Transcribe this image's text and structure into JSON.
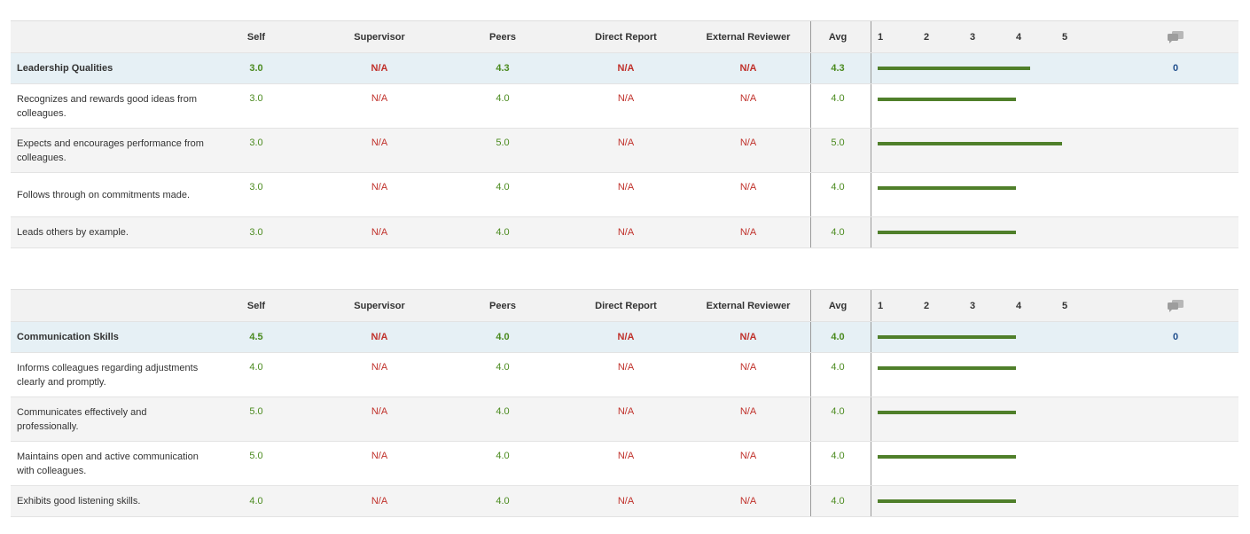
{
  "columns": {
    "self": "Self",
    "supervisor": "Supervisor",
    "peers": "Peers",
    "direct_report": "Direct Report",
    "external_reviewer": "External Reviewer",
    "avg": "Avg",
    "scale": [
      "1",
      "2",
      "3",
      "4",
      "5"
    ],
    "comment_icon": "comment-icon"
  },
  "colors": {
    "score": "#4a8a1e",
    "na": "#c0312b",
    "bar": "#4f7f2a",
    "count": "#1f4e8c"
  },
  "sections": [
    {
      "group": {
        "label": "Leadership Qualities",
        "self": "3.0",
        "supervisor": "N/A",
        "peers": "4.3",
        "direct_report": "N/A",
        "external_reviewer": "N/A",
        "avg": "4.3",
        "bar_value": 4.3,
        "comments": "0"
      },
      "items": [
        {
          "label": "Recognizes and rewards good ideas from colleagues.",
          "self": "3.0",
          "supervisor": "N/A",
          "peers": "4.0",
          "direct_report": "N/A",
          "external_reviewer": "N/A",
          "avg": "4.0",
          "bar_value": 4.0
        },
        {
          "label": "Expects and encourages performance from colleagues.",
          "self": "3.0",
          "supervisor": "N/A",
          "peers": "5.0",
          "direct_report": "N/A",
          "external_reviewer": "N/A",
          "avg": "5.0",
          "bar_value": 5.0
        },
        {
          "label": "Follows through on commitments made.",
          "self": "3.0",
          "supervisor": "N/A",
          "peers": "4.0",
          "direct_report": "N/A",
          "external_reviewer": "N/A",
          "avg": "4.0",
          "bar_value": 4.0
        },
        {
          "label": "Leads others by example.",
          "self": "3.0",
          "supervisor": "N/A",
          "peers": "4.0",
          "direct_report": "N/A",
          "external_reviewer": "N/A",
          "avg": "4.0",
          "bar_value": 4.0
        }
      ]
    },
    {
      "group": {
        "label": "Communication Skills",
        "self": "4.5",
        "supervisor": "N/A",
        "peers": "4.0",
        "direct_report": "N/A",
        "external_reviewer": "N/A",
        "avg": "4.0",
        "bar_value": 4.0,
        "comments": "0"
      },
      "items": [
        {
          "label": "Informs colleagues regarding adjustments clearly and promptly.",
          "self": "4.0",
          "supervisor": "N/A",
          "peers": "4.0",
          "direct_report": "N/A",
          "external_reviewer": "N/A",
          "avg": "4.0",
          "bar_value": 4.0
        },
        {
          "label": "Communicates effectively and professionally.",
          "self": "5.0",
          "supervisor": "N/A",
          "peers": "4.0",
          "direct_report": "N/A",
          "external_reviewer": "N/A",
          "avg": "4.0",
          "bar_value": 4.0
        },
        {
          "label": "Maintains open and active communication with colleagues.",
          "self": "5.0",
          "supervisor": "N/A",
          "peers": "4.0",
          "direct_report": "N/A",
          "external_reviewer": "N/A",
          "avg": "4.0",
          "bar_value": 4.0
        },
        {
          "label": "Exhibits good listening skills.",
          "self": "4.0",
          "supervisor": "N/A",
          "peers": "4.0",
          "direct_report": "N/A",
          "external_reviewer": "N/A",
          "avg": "4.0",
          "bar_value": 4.0
        }
      ]
    }
  ]
}
